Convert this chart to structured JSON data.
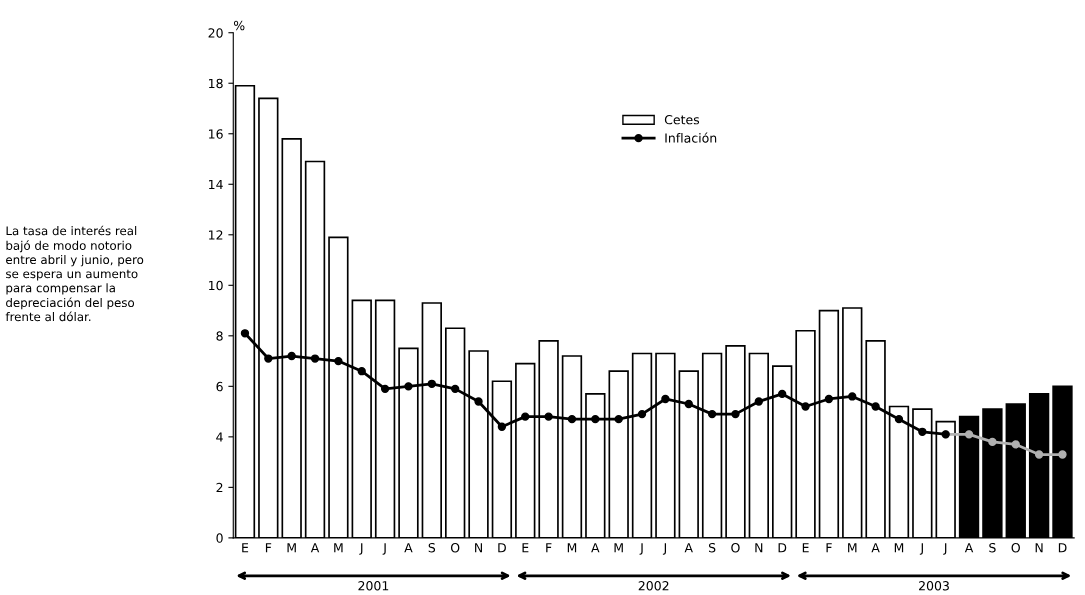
{
  "chart_data": {
    "type": "bar",
    "ylabel": "%",
    "categories": [
      "E",
      "F",
      "M",
      "A",
      "M",
      "J",
      "J",
      "A",
      "S",
      "O",
      "N",
      "D",
      "E",
      "F",
      "M",
      "A",
      "M",
      "J",
      "J",
      "A",
      "S",
      "O",
      "N",
      "D",
      "E",
      "F",
      "M",
      "A",
      "M",
      "J",
      "J",
      "A",
      "S",
      "O",
      "N",
      "D"
    ],
    "series": [
      {
        "name": "Cetes",
        "color": "#ffffff",
        "colors": [
          "#ffffff",
          "#ffffff",
          "#ffffff",
          "#ffffff",
          "#ffffff",
          "#ffffff",
          "#ffffff",
          "#ffffff",
          "#ffffff",
          "#ffffff",
          "#ffffff",
          "#ffffff",
          "#ffffff",
          "#ffffff",
          "#ffffff",
          "#ffffff",
          "#ffffff",
          "#ffffff",
          "#ffffff",
          "#ffffff",
          "#ffffff",
          "#ffffff",
          "#ffffff",
          "#ffffff",
          "#ffffff",
          "#ffffff",
          "#ffffff",
          "#ffffff",
          "#ffffff",
          "#ffffff",
          "#ffffff",
          "#000000",
          "#000000",
          "#000000",
          "#000000",
          "#000000"
        ],
        "values": [
          17.9,
          17.4,
          15.8,
          14.9,
          11.9,
          9.4,
          9.4,
          7.5,
          9.3,
          8.3,
          7.4,
          6.2,
          6.9,
          7.8,
          7.2,
          5.7,
          6.6,
          7.3,
          7.3,
          6.6,
          7.3,
          7.6,
          7.3,
          6.8,
          8.2,
          9.0,
          9.1,
          7.8,
          5.2,
          5.1,
          4.6,
          4.8,
          5.1,
          5.3,
          5.7,
          6.0
        ]
      },
      {
        "name": "Inflación",
        "type": "line",
        "color": "#000000",
        "values": [
          8.1,
          7.1,
          7.2,
          7.1,
          7.0,
          6.6,
          5.9,
          6.0,
          6.1,
          5.9,
          5.4,
          4.4,
          4.8,
          4.8,
          4.7,
          4.7,
          4.7,
          4.9,
          5.5,
          5.3,
          4.9,
          4.9,
          5.4,
          5.7,
          5.2,
          5.5,
          5.6,
          5.2,
          4.7,
          4.2,
          4.1,
          null,
          null,
          null,
          null,
          null
        ]
      },
      {
        "type": "line",
        "color": "#b0b0b0",
        "values": [
          null,
          null,
          null,
          null,
          null,
          null,
          null,
          null,
          null,
          null,
          null,
          null,
          null,
          null,
          null,
          null,
          null,
          null,
          null,
          null,
          null,
          null,
          null,
          null,
          null,
          null,
          null,
          null,
          null,
          null,
          4.1,
          4.1,
          3.8,
          3.7,
          3.3,
          3.3
        ]
      }
    ],
    "ylim": [
      0,
      20
    ],
    "yticks": [
      0,
      2,
      4,
      6,
      8,
      10,
      12,
      14,
      16,
      18,
      20
    ],
    "marker": "circle",
    "line_style": "solid",
    "grid": false,
    "legend": "top",
    "annotations": [
      "2001",
      "2002",
      "2003",
      "La tasa de interés real\nbajó de modo notorio\nentre abril y junio, pero\nse espera un aumento\npara compensar la\ndepreciación del peso\nfrente al dólar."
    ]
  }
}
